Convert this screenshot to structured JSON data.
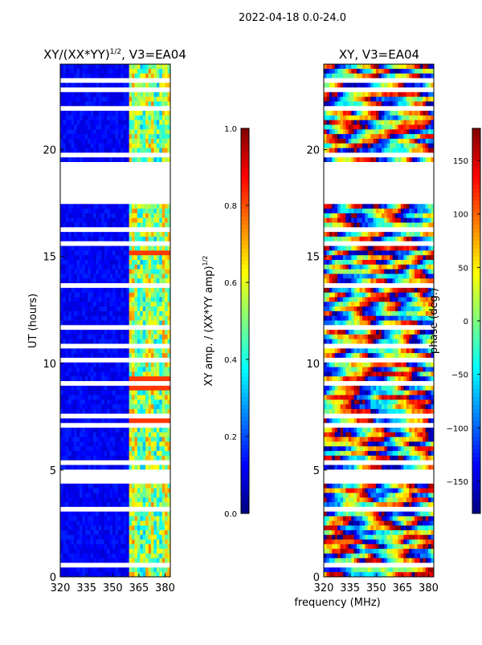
{
  "figure": {
    "suptitle": "2022-04-18 0.0-24.0",
    "shared_xlabel": "frequency (MHz)"
  },
  "chart_data": [
    {
      "type": "heatmap",
      "title_main": "XY/(XX*YY)",
      "title_sup": "1/2",
      "title_suffix": ", V3=EA04",
      "ylabel": "UT (hours)",
      "xlim": [
        320,
        383
      ],
      "ylim": [
        0,
        24
      ],
      "xticks": [
        320,
        335,
        350,
        365,
        380
      ],
      "yticks": [
        0,
        5,
        10,
        15,
        20
      ],
      "colorbar": {
        "label_main": "XY amp. / (XX*YY amp)",
        "label_sup": "1/2",
        "range": [
          0.0,
          1.0
        ],
        "ticks": [
          "0.0",
          "0.2",
          "0.4",
          "0.6",
          "0.8",
          "1.0"
        ],
        "cmap": "jet"
      },
      "background_value": 0.08,
      "active_band_mhz": [
        360,
        383
      ],
      "hot_spots_hours": [
        15.2,
        9.3,
        8.8,
        7.2
      ]
    },
    {
      "type": "heatmap",
      "title": "XY, V3=EA04",
      "xlim": [
        320,
        383
      ],
      "ylim": [
        0,
        24
      ],
      "xticks": [
        320,
        335,
        350,
        365,
        380
      ],
      "yticks": [
        0,
        5,
        10,
        15,
        20
      ],
      "colorbar": {
        "label": "phase (deg.)",
        "range": [
          -180,
          180
        ],
        "ticks": [
          "150",
          "100",
          "50",
          "0",
          "−50",
          "−100",
          "−150"
        ],
        "cmap": "jet"
      }
    }
  ],
  "flagged_hours": [
    [
      0.35,
      0.7
    ],
    [
      3.15,
      3.3
    ],
    [
      3.45,
      3.55
    ],
    [
      4.35,
      4.95
    ],
    [
      5.15,
      5.5
    ],
    [
      6.05,
      6.12
    ],
    [
      6.5,
      6.6
    ],
    [
      7.0,
      7.1
    ],
    [
      7.5,
      7.6
    ],
    [
      8.0,
      8.1
    ],
    [
      8.5,
      8.6
    ],
    [
      9.0,
      9.1
    ],
    [
      9.6,
      9.7
    ],
    [
      10.1,
      10.2
    ],
    [
      10.7,
      10.85
    ],
    [
      11.6,
      11.75
    ],
    [
      12.4,
      12.5
    ],
    [
      13.6,
      13.7
    ],
    [
      14.1,
      14.2
    ],
    [
      14.6,
      14.7
    ],
    [
      15.5,
      15.6
    ],
    [
      16.2,
      16.3
    ],
    [
      16.75,
      16.85
    ],
    [
      17.35,
      19.35
    ],
    [
      19.65,
      19.75
    ],
    [
      20.2,
      20.3
    ],
    [
      21.9,
      22.05
    ],
    [
      22.25,
      22.35
    ],
    [
      22.6,
      22.95
    ],
    [
      23.2,
      23.3
    ]
  ]
}
